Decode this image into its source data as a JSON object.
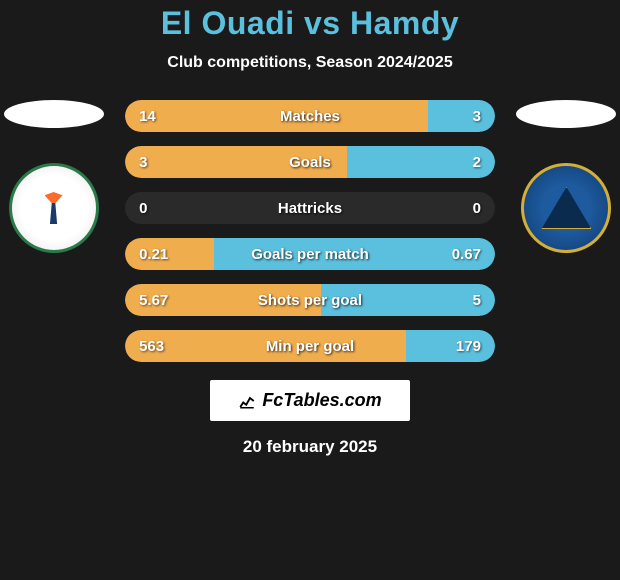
{
  "title": {
    "player1": "El Ouadi",
    "vs": "vs",
    "player2": "Hamdy"
  },
  "subtitle": "Club competitions, Season 2024/2025",
  "colors": {
    "player1_bar": "#f0ad4e",
    "player2_bar": "#5bc0de",
    "row_bg": "#2a2a2a",
    "title_color": "#5bc0de",
    "text_color": "#ffffff"
  },
  "stats": [
    {
      "label": "Matches",
      "left_val": "14",
      "right_val": "3",
      "left_pct": 82,
      "right_pct": 18
    },
    {
      "label": "Goals",
      "left_val": "3",
      "right_val": "2",
      "left_pct": 60,
      "right_pct": 40
    },
    {
      "label": "Hattricks",
      "left_val": "0",
      "right_val": "0",
      "left_pct": 0,
      "right_pct": 0
    },
    {
      "label": "Goals per match",
      "left_val": "0.21",
      "right_val": "0.67",
      "left_pct": 24,
      "right_pct": 76
    },
    {
      "label": "Shots per goal",
      "left_val": "5.67",
      "right_val": "5",
      "left_pct": 53,
      "right_pct": 47
    },
    {
      "label": "Min per goal",
      "left_val": "563",
      "right_val": "179",
      "left_pct": 76,
      "right_pct": 24
    }
  ],
  "footer": {
    "logo_text": "FcTables.com",
    "date": "20 february 2025"
  },
  "badges": {
    "left_alt": "club-badge-left",
    "right_alt": "club-badge-right"
  }
}
